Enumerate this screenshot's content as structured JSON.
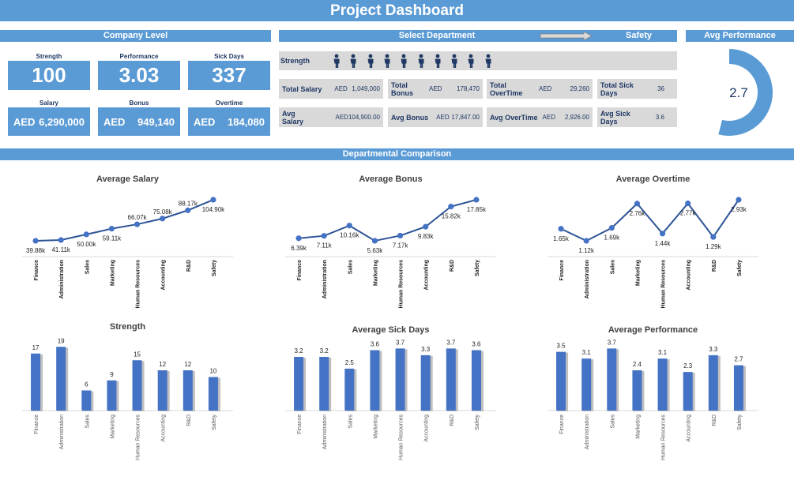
{
  "header": {
    "title": "Project Dashboard"
  },
  "company": {
    "heading": "Company Level",
    "kpis": [
      {
        "label": "Strength",
        "value": "100"
      },
      {
        "label": "Performance",
        "value": "3.03"
      },
      {
        "label": "Sick Days",
        "value": "337"
      }
    ],
    "money": [
      {
        "label": "Salary",
        "currency": "AED",
        "value": "6,290,000"
      },
      {
        "label": "Bonus",
        "currency": "AED",
        "value": "949,140"
      },
      {
        "label": "Overtime",
        "currency": "AED",
        "value": "184,080"
      }
    ]
  },
  "department": {
    "heading": "Select Department",
    "selected": "Safety",
    "strength_label": "Strength",
    "strength_icons": 10,
    "totals": [
      {
        "label": "Total Salary",
        "unit": "AED",
        "value": "1,049,000"
      },
      {
        "label": "Total Bonus",
        "unit": "AED",
        "value": "178,470"
      },
      {
        "label": "Total OverTime",
        "unit": "AED",
        "value": "29,260"
      },
      {
        "label": "Total Sick Days",
        "unit": "",
        "value": "36"
      }
    ],
    "averages": [
      {
        "label": "Avg Salary",
        "unit": "AED",
        "value": "104,900.00"
      },
      {
        "label": "Avg Bonus",
        "unit": "AED",
        "value": "17,847.00"
      },
      {
        "label": "Avg OverTime",
        "unit": "AED",
        "value": "2,926.00"
      },
      {
        "label": "Avg Sick Days",
        "unit": "",
        "value": "3.6"
      }
    ]
  },
  "gauge": {
    "heading": "Avg Performance",
    "value": "2.7",
    "fraction": 0.54,
    "color": "#5b9bd5"
  },
  "comparison": {
    "heading": "Departmental Comparison"
  },
  "chart_data": [
    {
      "type": "line",
      "title": "Average Salary",
      "categories": [
        "Finance",
        "Administration",
        "Sales",
        "Marketing",
        "Human Resources",
        "Accounting",
        "R&D",
        "Safety"
      ],
      "values": [
        39.88,
        41.11,
        50.0,
        59.11,
        66.07,
        75.08,
        88.17,
        104.9
      ],
      "labels": [
        "39.88k",
        "41.11k",
        "50.00k",
        "59.11k",
        "66.07k",
        "75.08k",
        "88.17k",
        "104.90k"
      ],
      "label_pos": [
        "below",
        "below",
        "below",
        "below",
        "above",
        "above",
        "above",
        "below"
      ]
    },
    {
      "type": "line",
      "title": "Average Bonus",
      "categories": [
        "Finance",
        "Administration",
        "Sales",
        "Marketing",
        "Human Resources",
        "Accounting",
        "R&D",
        "Safety"
      ],
      "values": [
        6.39,
        7.11,
        10.16,
        5.63,
        7.17,
        9.83,
        15.82,
        17.85
      ],
      "labels": [
        "6.39k",
        "7.11k",
        "10.16k",
        "5.63k",
        "7.17k",
        "9.83k",
        "15.82k",
        "17.85k"
      ],
      "label_pos": [
        "below",
        "below",
        "below",
        "below",
        "below",
        "below",
        "below",
        "below"
      ]
    },
    {
      "type": "line",
      "title": "Average Overtime",
      "categories": [
        "Finance",
        "Administration",
        "Sales",
        "Marketing",
        "Human Resources",
        "Accounting",
        "R&D",
        "Safety"
      ],
      "values": [
        1.65,
        1.12,
        1.69,
        2.76,
        1.44,
        2.77,
        1.29,
        2.93
      ],
      "labels": [
        "1.65k",
        "1.12k",
        "1.69k",
        "2.76k",
        "1.44k",
        "2.77k",
        "1.29k",
        "2.93k"
      ],
      "label_pos": [
        "below",
        "below",
        "below",
        "below",
        "below",
        "below",
        "below",
        "below"
      ]
    },
    {
      "type": "bar",
      "title": "Strength",
      "categories": [
        "Finance",
        "Administration",
        "Sales",
        "Marketing",
        "Human Resources",
        "Accounting",
        "R&D",
        "Safety"
      ],
      "values": [
        17,
        19,
        6,
        9,
        15,
        12,
        12,
        10
      ],
      "labels": [
        "17",
        "19",
        "6",
        "9",
        "15",
        "12",
        "12",
        "10"
      ],
      "ylim": [
        0,
        20
      ]
    },
    {
      "type": "bar",
      "title": "Average Sick Days",
      "categories": [
        "Finance",
        "Administration",
        "Sales",
        "Marketing",
        "Human Resources",
        "Accounting",
        "R&D",
        "Safety"
      ],
      "values": [
        3.2,
        3.2,
        2.5,
        3.6,
        3.7,
        3.3,
        3.7,
        3.6
      ],
      "labels": [
        "3.2",
        "3.2",
        "2.5",
        "3.6",
        "3.7",
        "3.3",
        "3.7",
        "3.6"
      ],
      "ylim": [
        0,
        4
      ]
    },
    {
      "type": "bar",
      "title": "Average Performance",
      "categories": [
        "Finance",
        "Administration",
        "Sales",
        "Marketing",
        "Human Resources",
        "Accounting",
        "R&D",
        "Safety"
      ],
      "values": [
        3.5,
        3.1,
        3.7,
        2.4,
        3.1,
        2.3,
        3.3,
        2.7
      ],
      "labels": [
        "3.5",
        "3.1",
        "3.7",
        "2.4",
        "3.1",
        "2.3",
        "3.3",
        "2.7"
      ],
      "ylim": [
        0,
        4
      ]
    }
  ]
}
